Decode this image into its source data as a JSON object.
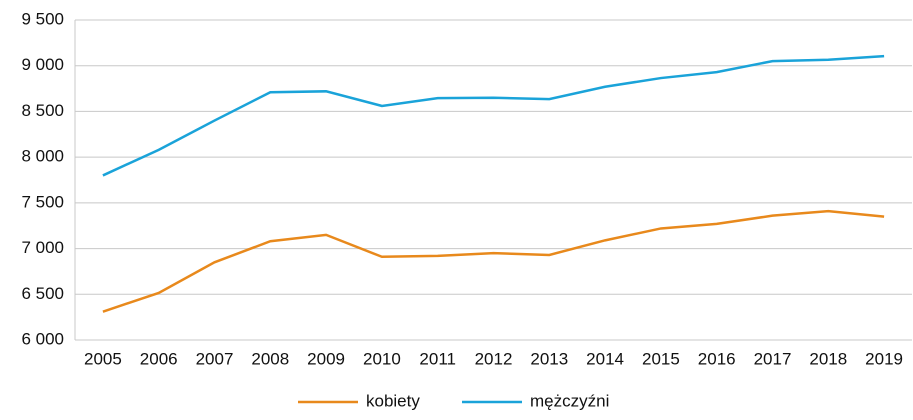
{
  "chart_data": {
    "type": "line",
    "categories": [
      "2005",
      "2006",
      "2007",
      "2008",
      "2009",
      "2010",
      "2011",
      "2012",
      "2013",
      "2014",
      "2015",
      "2016",
      "2017",
      "2018",
      "2019"
    ],
    "series": [
      {
        "name": "kobiety",
        "color": "#e8891c",
        "values": [
          6310,
          6515,
          6850,
          7080,
          7150,
          6910,
          6920,
          6950,
          6930,
          7090,
          7220,
          7270,
          7360,
          7410,
          7350
        ]
      },
      {
        "name": "mężczyźni",
        "color": "#1aa3d9",
        "values": [
          7800,
          8080,
          8400,
          8710,
          8720,
          8560,
          8645,
          8650,
          8635,
          8770,
          8865,
          8930,
          9050,
          9065,
          9105
        ]
      }
    ],
    "ylim": [
      6000,
      9500
    ],
    "yticks": [
      {
        "value": 6000,
        "label": "6 000"
      },
      {
        "value": 6500,
        "label": "6 500"
      },
      {
        "value": 7000,
        "label": "7 000"
      },
      {
        "value": 7500,
        "label": "7 500"
      },
      {
        "value": 8000,
        "label": "8 000"
      },
      {
        "value": 8500,
        "label": "8 500"
      },
      {
        "value": 9000,
        "label": "9 000"
      },
      {
        "value": 9500,
        "label": "9 500"
      }
    ],
    "grid": true,
    "legend": "bottom"
  }
}
